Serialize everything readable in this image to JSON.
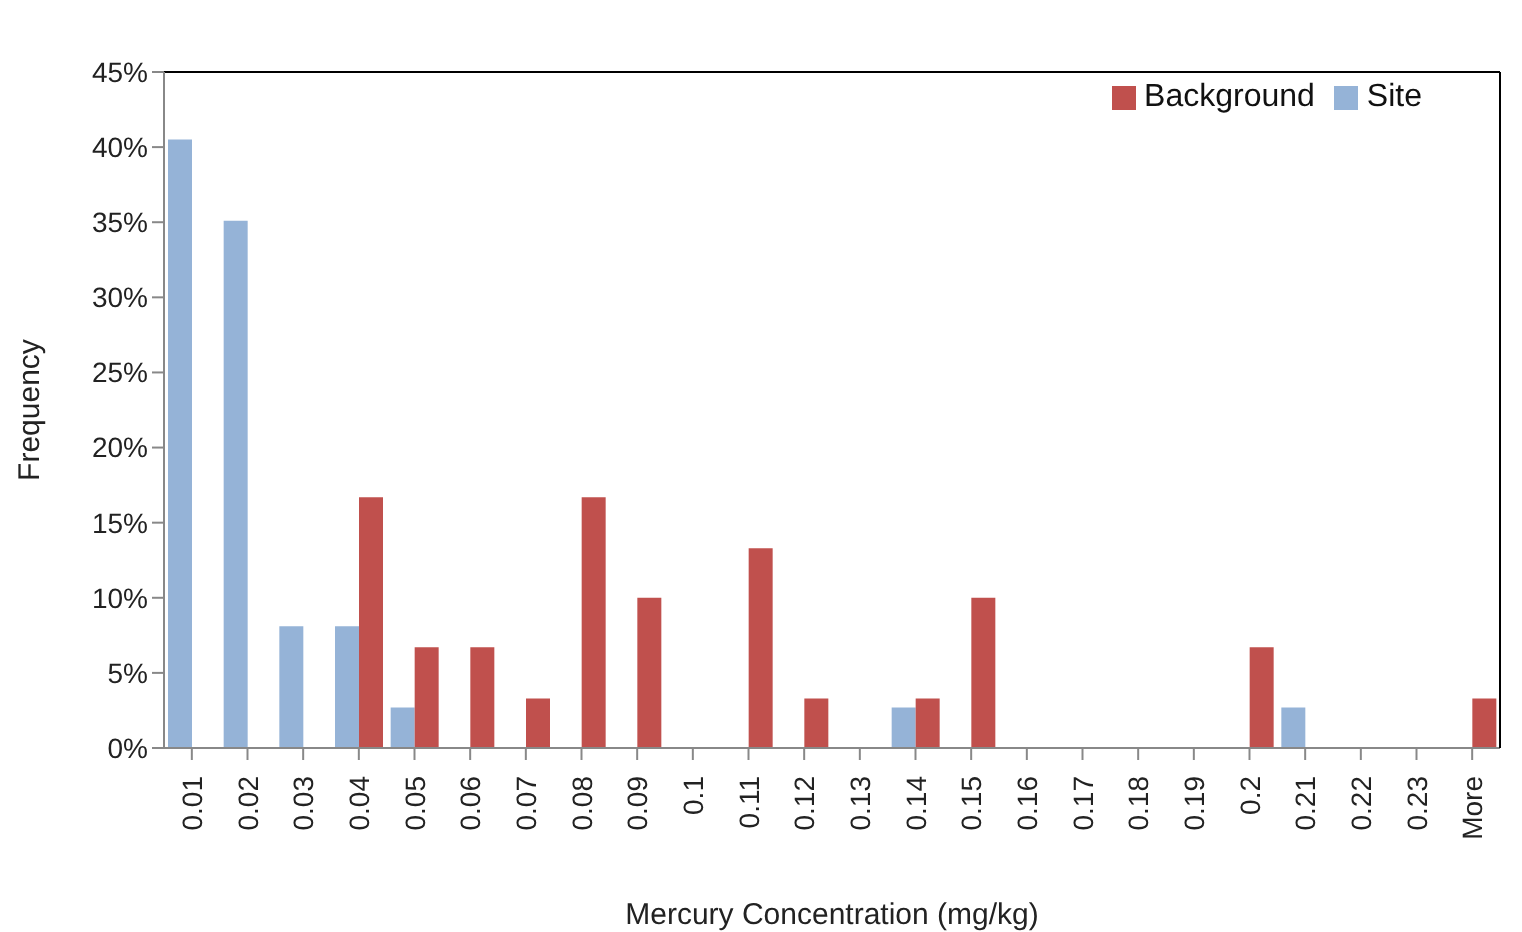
{
  "chart_data": {
    "type": "bar",
    "xlabel": "Mercury Concentration (mg/kg)",
    "ylabel": "Frequency",
    "categories": [
      "0.01",
      "0.02",
      "0.03",
      "0.04",
      "0.05",
      "0.06",
      "0.07",
      "0.08",
      "0.09",
      "0.1",
      "0.11",
      "0.12",
      "0.13",
      "0.14",
      "0.15",
      "0.16",
      "0.17",
      "0.18",
      "0.19",
      "0.2",
      "0.21",
      "0.22",
      "0.23",
      "More"
    ],
    "series": [
      {
        "name": "Site",
        "color": "#95b3d7",
        "values": [
          40.5,
          35.1,
          8.1,
          8.1,
          2.7,
          0,
          0,
          0,
          0,
          0,
          0,
          0,
          0,
          2.7,
          0,
          0,
          0,
          0,
          0,
          0,
          2.7,
          0,
          0,
          0
        ]
      },
      {
        "name": "Background",
        "color": "#c0504d",
        "values": [
          0,
          0,
          0,
          16.7,
          6.7,
          6.7,
          3.3,
          16.7,
          10,
          0,
          13.3,
          3.3,
          0,
          3.3,
          10,
          0,
          0,
          0,
          0,
          6.7,
          0,
          0,
          0,
          3.3
        ]
      }
    ],
    "ylim": [
      0,
      45
    ],
    "yticks": [
      {
        "value": 0,
        "label": "0%"
      },
      {
        "value": 5,
        "label": "5%"
      },
      {
        "value": 10,
        "label": "10%"
      },
      {
        "value": 15,
        "label": "15%"
      },
      {
        "value": 20,
        "label": "20%"
      },
      {
        "value": 25,
        "label": "25%"
      },
      {
        "value": 30,
        "label": "30%"
      },
      {
        "value": 35,
        "label": "35%"
      },
      {
        "value": 40,
        "label": "40%"
      },
      {
        "value": 45,
        "label": "45%"
      }
    ],
    "legend": "top right"
  }
}
